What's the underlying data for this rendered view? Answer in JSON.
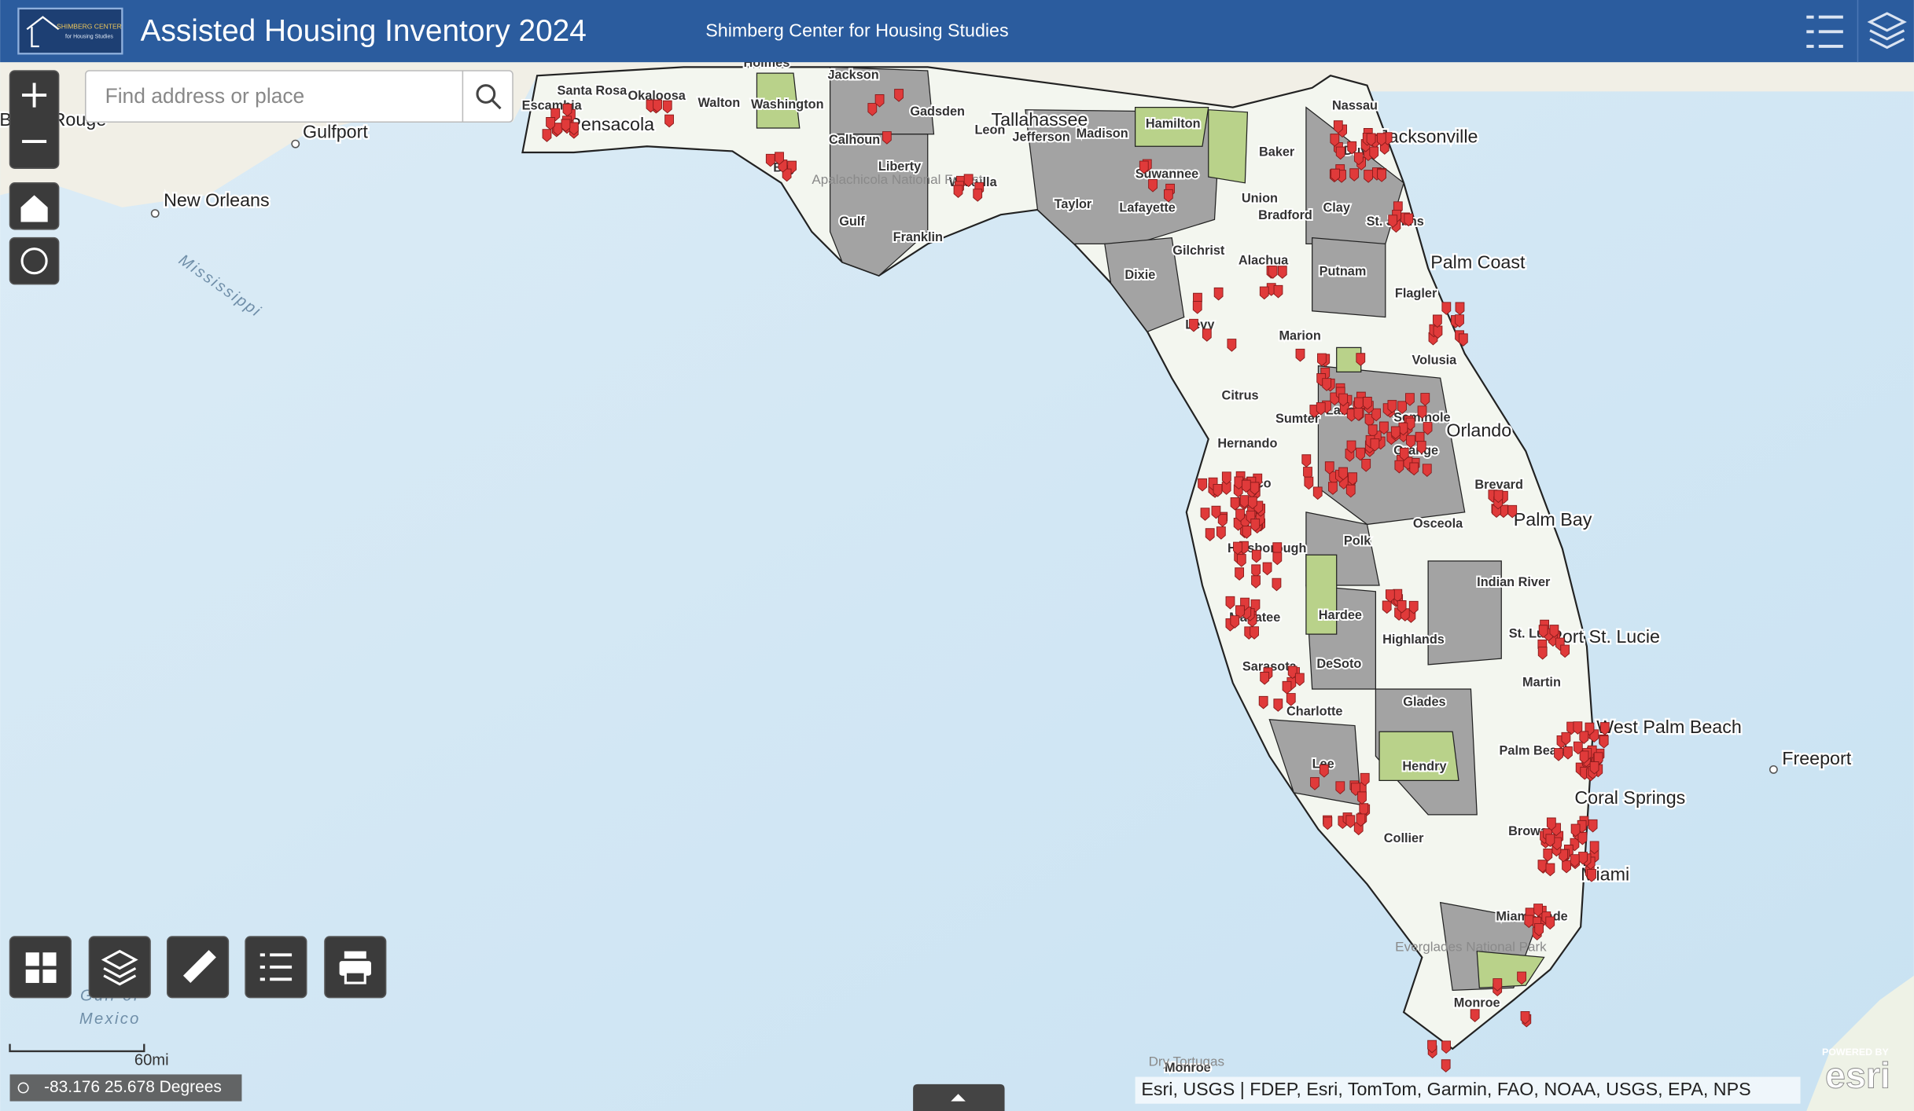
{
  "header": {
    "logo": [
      "SHIMBERG CENTER",
      "for Housing Studies"
    ],
    "title": "Assisted Housing Inventory 2024",
    "subtitle": "Shimberg Center for Housing Studies"
  },
  "search": {
    "placeholder": "Find address or place"
  },
  "map": {
    "counties": [
      "Escambia",
      "Santa Rosa",
      "Okaloosa",
      "Walton",
      "Holmes",
      "Jackson",
      "Washington",
      "Gadsden",
      "Calhoun",
      "Bay",
      "Liberty",
      "Gulf",
      "Franklin",
      "Wakulla",
      "Leon",
      "Jefferson",
      "Madison",
      "Hamilton",
      "Taylor",
      "Suwannee",
      "Lafayette",
      "Baker",
      "Nassau",
      "Duval",
      "Union",
      "Bradford",
      "Clay",
      "St. Johns",
      "Gilchrist",
      "Alachua",
      "Dixie",
      "Putnam",
      "Flagler",
      "Levy",
      "Marion",
      "Volusia",
      "Citrus",
      "Sumter",
      "Lake",
      "Seminole",
      "Hernando",
      "Orange",
      "Pasco",
      "Brevard",
      "Osceola",
      "Hillsborough",
      "Polk",
      "Indian River",
      "Manatee",
      "Hardee",
      "Highlands",
      "St. Lucie",
      "Sarasota",
      "DeSoto",
      "Martin",
      "Charlotte",
      "Glades",
      "Palm Beach",
      "Lee",
      "Hendry",
      "Collier",
      "Broward",
      "Miami-Dade",
      "Monroe",
      "Monroe"
    ],
    "cities": [
      "Baton Rouge",
      "Gulfport",
      "New Orleans",
      "Pensacola",
      "Tallahassee",
      "Jacksonville",
      "Palm Coast",
      "Orlando",
      "Palm Bay",
      "Port St. Lucie",
      "West Palm Beach",
      "Coral Springs",
      "Miami",
      "Freeport"
    ],
    "water": [
      "Mississippi",
      "Gulf of",
      "Mexico"
    ],
    "parks": [
      "Apalachicola National Forest",
      "Everglades National Park",
      "Dry Tortugas"
    ]
  },
  "status": {
    "scale": "60mi",
    "coordinates": "-83.176 25.678 Degrees",
    "attribution": "Esri, USGS | FDEP, Esri, TomTom, Garmin, FAO, NOAA, USGS, EPA, NPS",
    "powered_by": "POWERED BY",
    "esri": "esri"
  }
}
